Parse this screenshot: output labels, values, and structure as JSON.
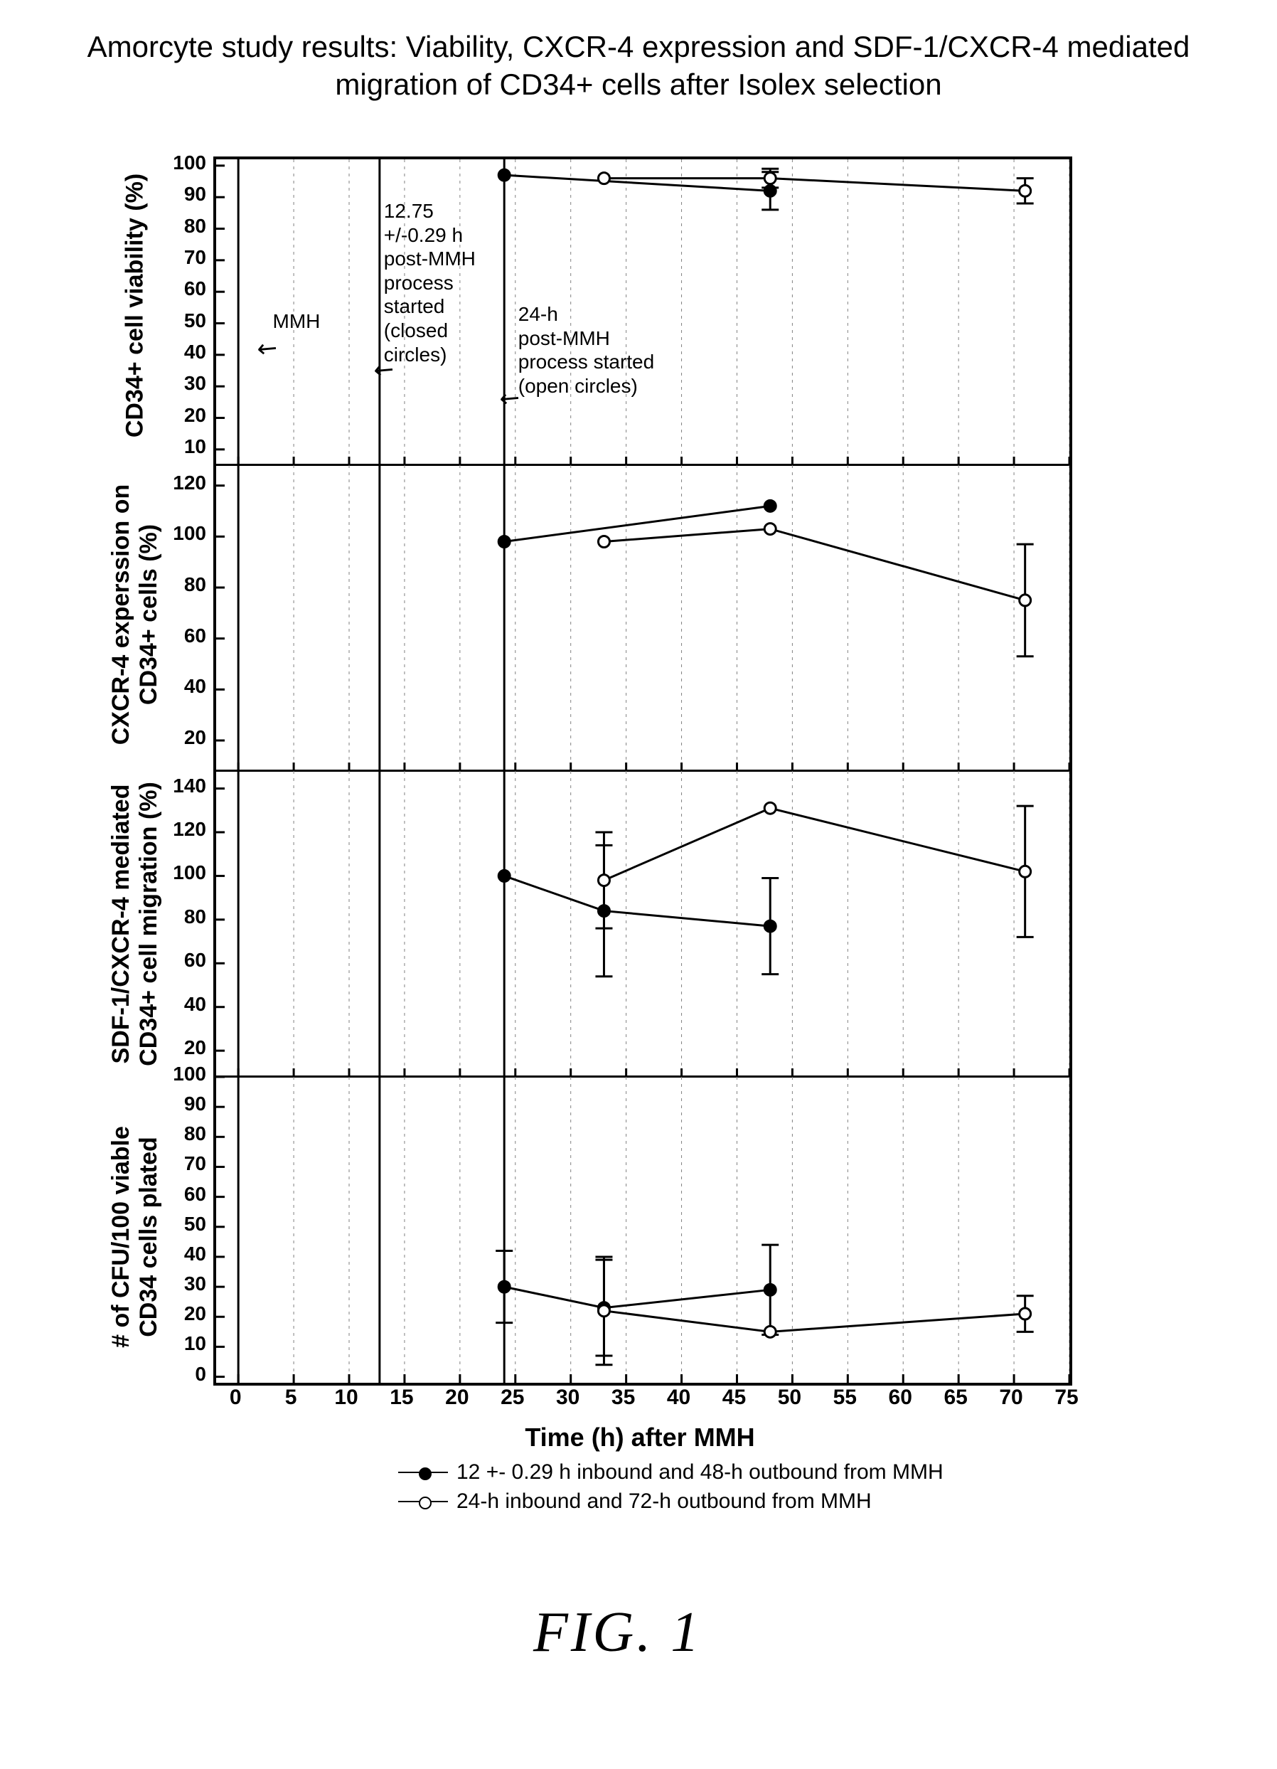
{
  "title_line1": "Amorcyte study results: Viability, CXCR-4 expression and SDF-1/CXCR-4 mediated",
  "title_line2": "migration of CD34+ cells after Isolex selection",
  "figure_label": "FIG. 1",
  "xaxis": {
    "label": "Time (h) after MMH",
    "min": -2,
    "max": 75,
    "ticks": [
      0,
      5,
      10,
      15,
      20,
      25,
      30,
      35,
      40,
      45,
      50,
      55,
      60,
      65,
      70,
      75
    ]
  },
  "ref_lines_x": [
    0,
    12.75,
    24
  ],
  "legend": {
    "s1": "12 +- 0.29 h inbound and 48-h outbound from MMH",
    "s2": "24-h inbound and 72-h outbound from MMH"
  },
  "annotations": {
    "mmh_label": "MMH",
    "a1275": "12.75\n+/-0.29 h\npost-MMH\nprocess\nstarted\n(closed\ncircles)",
    "a24": "24-h\npost-MMH\nprocess started\n(open circles)"
  },
  "panels": [
    {
      "id": "viability",
      "ylabel": "CD34+ cell viability (%)",
      "ymin": 5,
      "ymax": 102,
      "yticks": [
        10,
        20,
        30,
        40,
        50,
        60,
        70,
        80,
        90,
        100
      ],
      "series_closed": {
        "x": [
          24,
          48
        ],
        "y": [
          97,
          92
        ],
        "err": [
          0,
          6
        ]
      },
      "series_open": {
        "x": [
          33,
          48,
          71
        ],
        "y": [
          96,
          96,
          92
        ],
        "err": [
          0,
          3,
          4
        ]
      },
      "top_panel": true
    },
    {
      "id": "cxcr4",
      "ylabel": "CXCR-4 experssion on\nCD34+ cells (%)",
      "ymin": 8,
      "ymax": 128,
      "yticks": [
        20,
        40,
        60,
        80,
        100,
        120
      ],
      "series_closed": {
        "x": [
          24,
          48
        ],
        "y": [
          98,
          112
        ],
        "err": [
          0,
          0
        ]
      },
      "series_open": {
        "x": [
          33,
          48,
          71
        ],
        "y": [
          98,
          103,
          75
        ],
        "err": [
          0,
          0,
          22
        ]
      }
    },
    {
      "id": "migration",
      "ylabel": "SDF-1/CXCR-4 mediated\nCD34+ cell migration (%)",
      "ymin": 8,
      "ymax": 148,
      "yticks": [
        20,
        40,
        60,
        80,
        100,
        120,
        140
      ],
      "series_closed": {
        "x": [
          24,
          33,
          48
        ],
        "y": [
          100,
          84,
          77
        ],
        "err": [
          0,
          30,
          22
        ]
      },
      "series_open": {
        "x": [
          33,
          48,
          71
        ],
        "y": [
          98,
          131,
          102
        ],
        "err": [
          22,
          0,
          30
        ]
      }
    },
    {
      "id": "cfu",
      "ylabel": "# of CFU/100 viable\nCD34 cells plated",
      "ymin": -2,
      "ymax": 100,
      "yticks": [
        0,
        10,
        20,
        30,
        40,
        50,
        60,
        70,
        80,
        90,
        100
      ],
      "series_closed": {
        "x": [
          24,
          33,
          48
        ],
        "y": [
          30,
          23,
          29
        ],
        "err": [
          12,
          16,
          15
        ]
      },
      "series_open": {
        "x": [
          33,
          48,
          71
        ],
        "y": [
          22,
          15,
          21
        ],
        "err": [
          18,
          0,
          6
        ]
      }
    }
  ],
  "style": {
    "line_color": "#000000",
    "marker_stroke": "#000000",
    "closed_fill": "#000000",
    "open_fill": "#ffffff",
    "grid_color": "#808080",
    "grid_dash": "4,6",
    "marker_r": 8,
    "line_w": 3,
    "err_cap": 12
  }
}
